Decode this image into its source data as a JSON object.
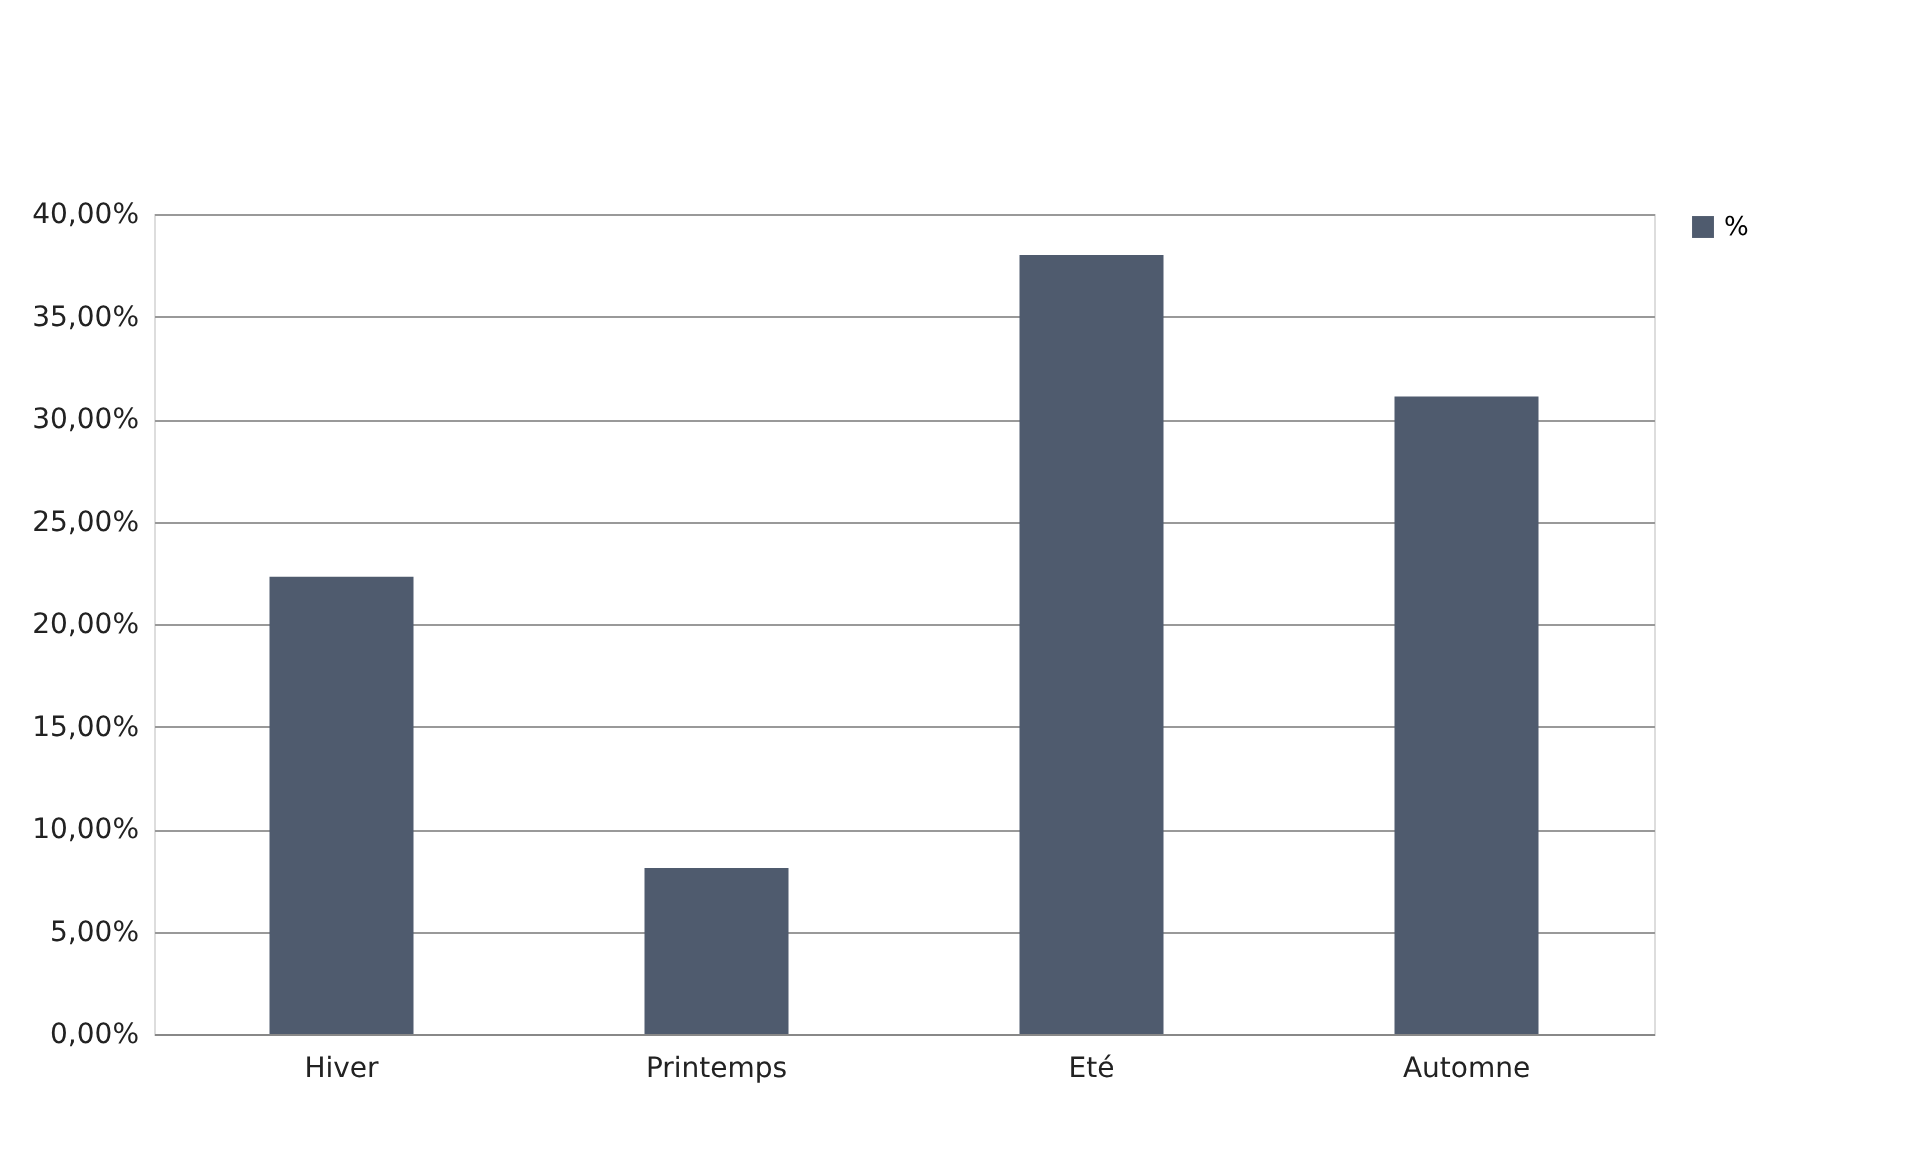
{
  "chart_data": {
    "type": "bar",
    "categories": [
      "Hiver",
      "Printemps",
      "Eté",
      "Automne"
    ],
    "series": [
      {
        "name": "%",
        "color": "#4f5b6e",
        "values": [
          22.3,
          8.1,
          38.0,
          31.1
        ]
      }
    ],
    "ylim": [
      0,
      40
    ],
    "yticks": [
      {
        "value": 0,
        "label": "0,00%"
      },
      {
        "value": 5,
        "label": "5,00%"
      },
      {
        "value": 10,
        "label": "10,00%"
      },
      {
        "value": 15,
        "label": "15,00%"
      },
      {
        "value": 20,
        "label": "20,00%"
      },
      {
        "value": 25,
        "label": "25,00%"
      },
      {
        "value": 30,
        "label": "30,00%"
      },
      {
        "value": 35,
        "label": "35,00%"
      },
      {
        "value": 40,
        "label": "40,00%"
      }
    ],
    "grid": "y",
    "legend": "right"
  }
}
